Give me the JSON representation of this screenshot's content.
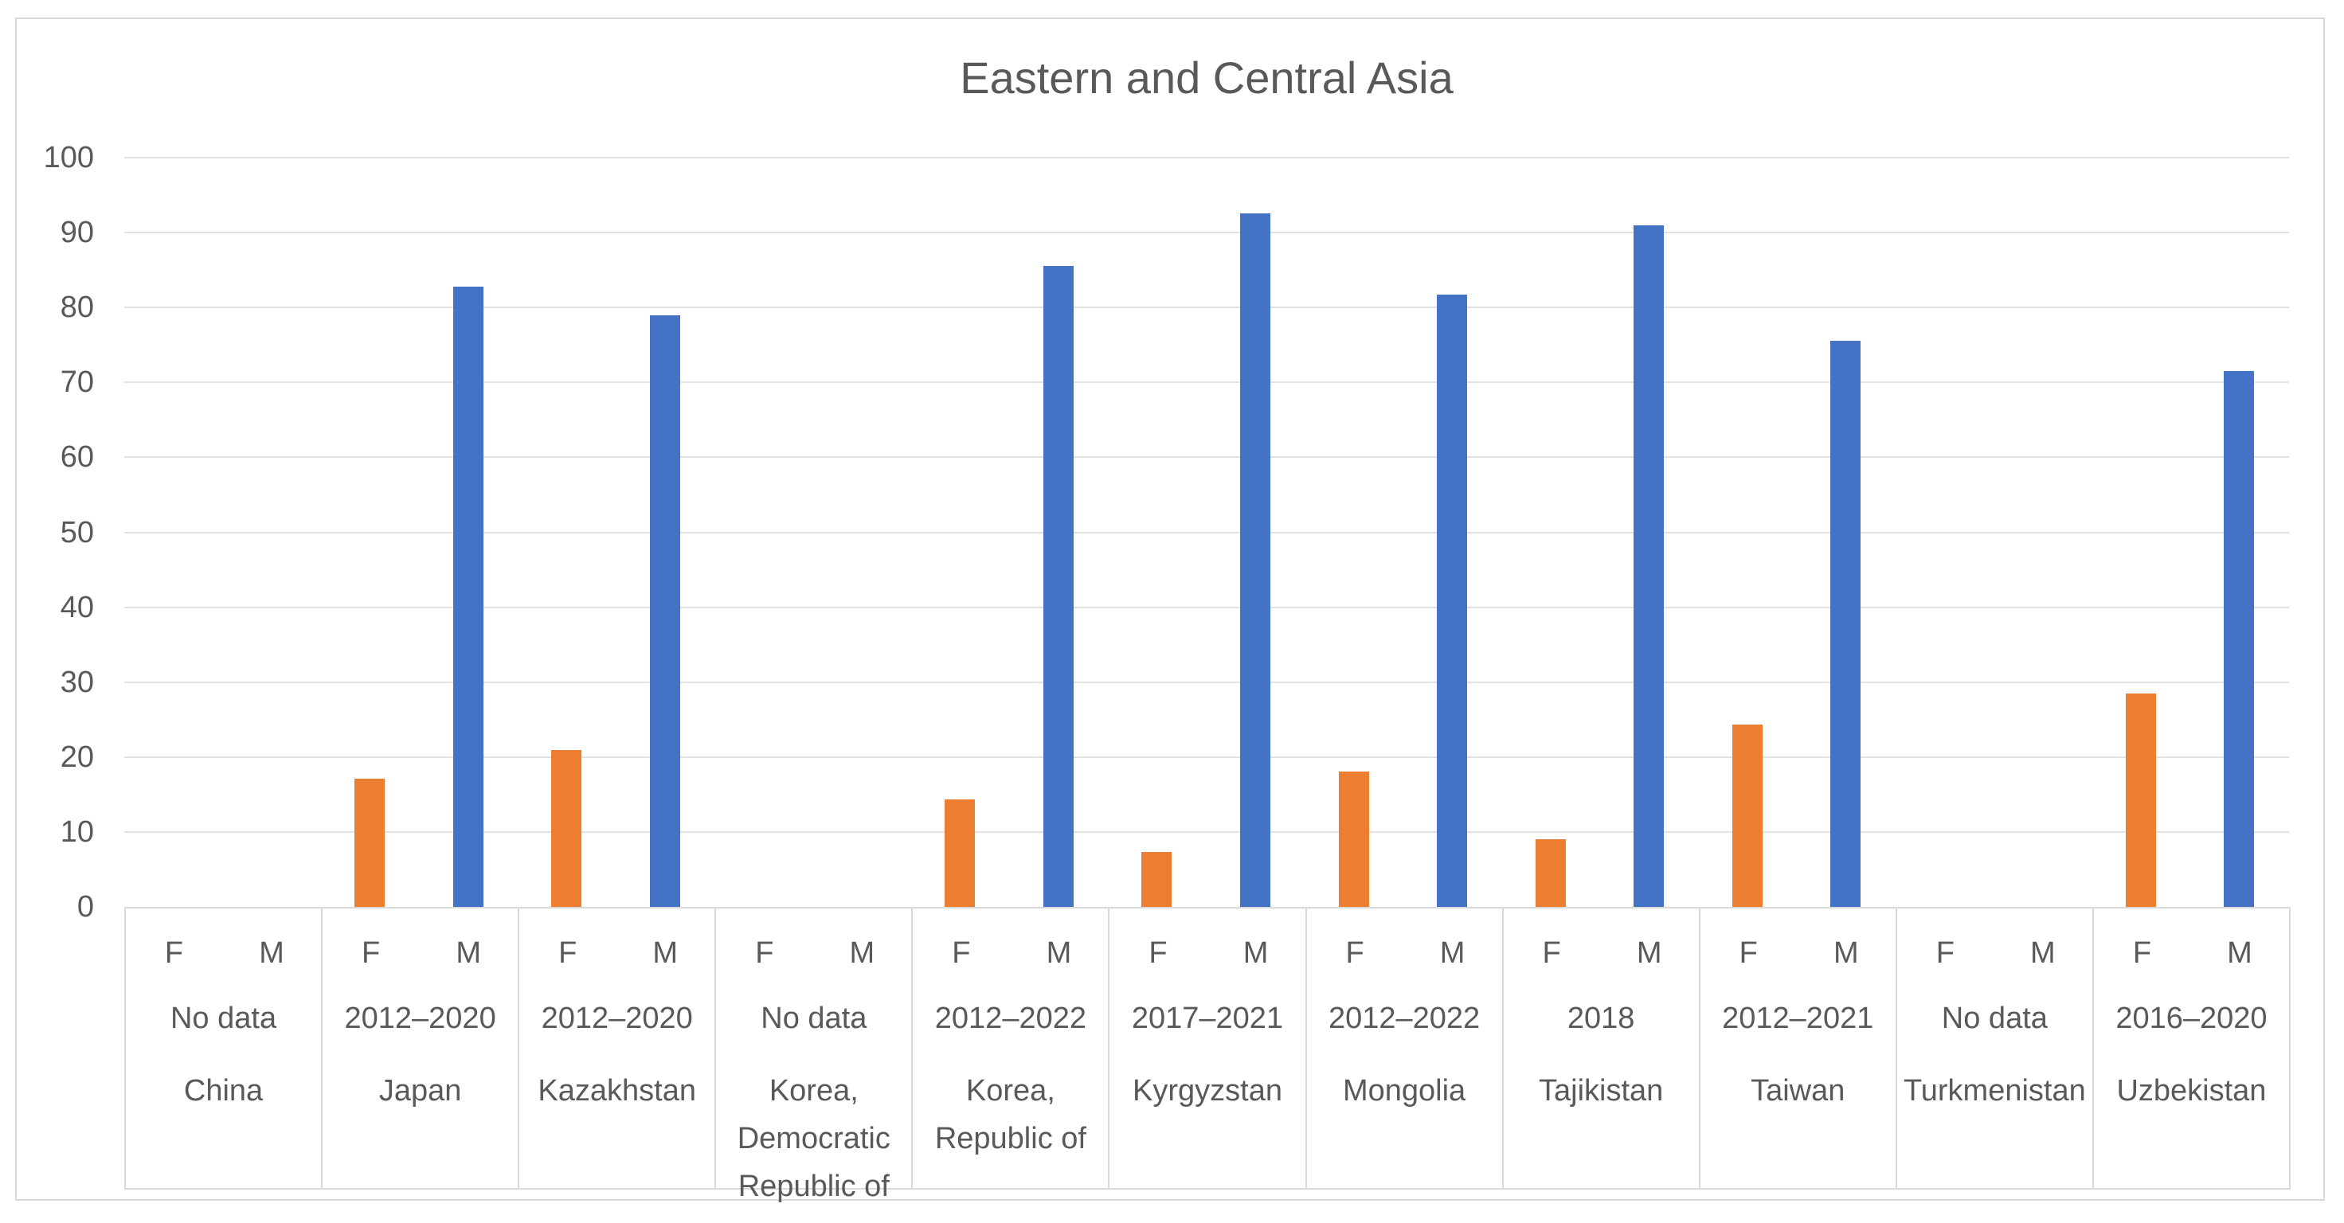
{
  "chart_data": {
    "type": "bar",
    "title": "Eastern and Central Asia",
    "xlabel": "",
    "ylabel": "",
    "ylim": [
      0,
      100
    ],
    "ytick_step": 10,
    "yticks": [
      0,
      10,
      20,
      30,
      40,
      50,
      60,
      70,
      80,
      90,
      100
    ],
    "grid": true,
    "legend_position": "none",
    "series_labels": {
      "f": "F",
      "m": "M"
    },
    "series_colors": {
      "f": "#ED7D31",
      "m": "#4472C4"
    },
    "categories": [
      {
        "country": "China",
        "period": "No data",
        "f": null,
        "m": null
      },
      {
        "country": "Japan",
        "period": "2012–2020",
        "f": 17.1,
        "m": 82.8
      },
      {
        "country": "Kazakhstan",
        "period": "2012–2020",
        "f": 20.9,
        "m": 79.0
      },
      {
        "country": "Korea, Democratic Republic of",
        "period": "No data",
        "f": null,
        "m": null
      },
      {
        "country": "Korea, Republic of",
        "period": "2012–2022",
        "f": 14.3,
        "m": 85.5
      },
      {
        "country": "Kyrgyzstan",
        "period": "2017–2021",
        "f": 7.3,
        "m": 92.6
      },
      {
        "country": "Mongolia",
        "period": "2012–2022",
        "f": 18.1,
        "m": 81.7
      },
      {
        "country": "Tajikistan",
        "period": "2018",
        "f": 9.0,
        "m": 91.0
      },
      {
        "country": "Taiwan",
        "period": "2012–2021",
        "f": 24.3,
        "m": 75.6
      },
      {
        "country": "Turkmenistan",
        "period": "No data",
        "f": null,
        "m": null
      },
      {
        "country": "Uzbekistan",
        "period": "2016–2020",
        "f": 28.5,
        "m": 71.5
      }
    ],
    "text_color": "#595959",
    "gridline_color": "#E2E2E2",
    "border_color": "#D9D9D9"
  }
}
